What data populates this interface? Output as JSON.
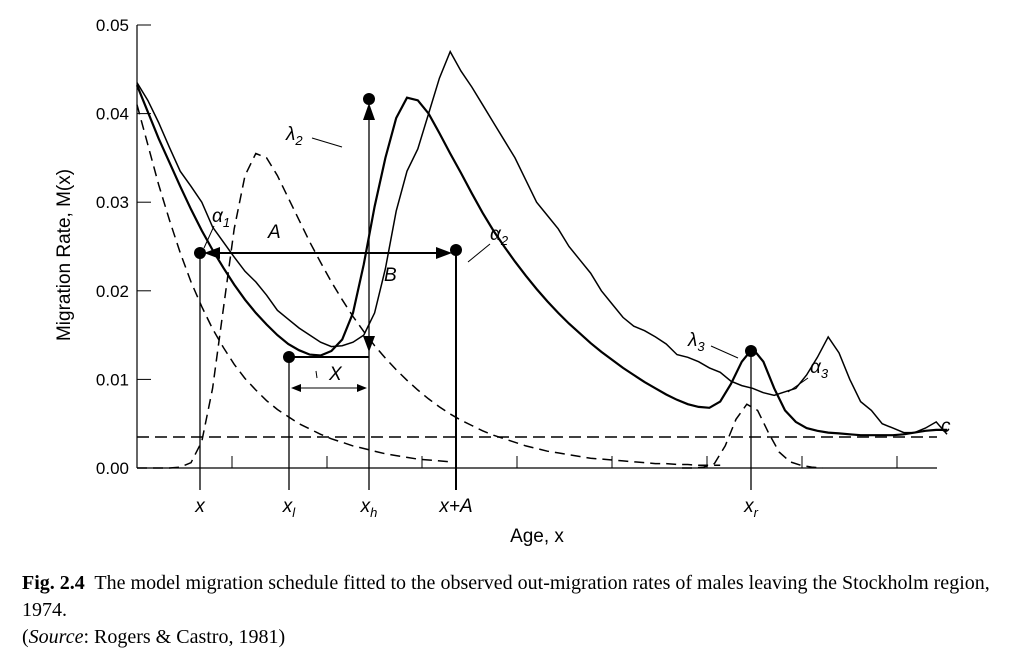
{
  "chart_data": {
    "type": "line",
    "ylabel": "Migration Rate, M(x)",
    "xlabel": "Age, x",
    "ylim": [
      0.0,
      0.05
    ],
    "yticks": [
      "0.00",
      "0.01",
      "0.02",
      "0.03",
      "0.04",
      "0.05"
    ],
    "xtick_labels": [
      {
        "key": "x",
        "text": "x"
      },
      {
        "key": "xl",
        "text": "x",
        "sub": "l"
      },
      {
        "key": "xh",
        "text": "x",
        "sub": "h"
      },
      {
        "key": "xA",
        "text": "x+A"
      },
      {
        "key": "xr",
        "text": "x",
        "sub": "r"
      }
    ],
    "grid": false,
    "series": [
      {
        "style": "solid-jagged",
        "values": [
          0.0435,
          0.0415,
          0.039,
          0.0362,
          0.0335,
          0.0318,
          0.03,
          0.0272,
          0.0255,
          0.0238,
          0.0222,
          0.021,
          0.0195,
          0.0178,
          0.0168,
          0.0158,
          0.015,
          0.0142,
          0.0137,
          0.0138,
          0.0142,
          0.015,
          0.0175,
          0.0225,
          0.029,
          0.0335,
          0.036,
          0.04,
          0.044,
          0.047,
          0.0448,
          0.043,
          0.041,
          0.039,
          0.037,
          0.035,
          0.0325,
          0.03,
          0.0285,
          0.027,
          0.025,
          0.0235,
          0.022,
          0.02,
          0.0185,
          0.017,
          0.016,
          0.0155,
          0.0148,
          0.014,
          0.0128,
          0.0125,
          0.012,
          0.0113,
          0.0108,
          0.0098,
          0.0093,
          0.009,
          0.0085,
          0.0082,
          0.0086,
          0.009,
          0.0105,
          0.0125,
          0.0148,
          0.013,
          0.01,
          0.0075,
          0.0065,
          0.005,
          0.0045,
          0.004,
          0.004,
          0.0045,
          0.0052,
          0.0038
        ]
      },
      {
        "style": "solid-smooth",
        "values": [
          0.0432,
          0.0402,
          0.0372,
          0.0345,
          0.0318,
          0.0292,
          0.0268,
          0.0246,
          0.0226,
          0.0207,
          0.019,
          0.0175,
          0.0162,
          0.015,
          0.014,
          0.0133,
          0.0128,
          0.0127,
          0.0132,
          0.0145,
          0.0175,
          0.023,
          0.0295,
          0.035,
          0.0395,
          0.0418,
          0.0415,
          0.04,
          0.0378,
          0.0355,
          0.0333,
          0.031,
          0.0288,
          0.0268,
          0.025,
          0.0233,
          0.0217,
          0.0202,
          0.0188,
          0.0175,
          0.0163,
          0.0152,
          0.0141,
          0.0131,
          0.0122,
          0.0113,
          0.0105,
          0.0097,
          0.009,
          0.0083,
          0.0077,
          0.0072,
          0.0069,
          0.0068,
          0.0075,
          0.0095,
          0.012,
          0.0135,
          0.012,
          0.009,
          0.0065,
          0.0052,
          0.0045,
          0.0042,
          0.004,
          0.0039,
          0.0038,
          0.0037,
          0.0037,
          0.0037,
          0.0037,
          0.0038,
          0.004,
          0.0042,
          0.0043,
          0.0043
        ]
      },
      {
        "style": "dashed-prelabor",
        "values": [
          0.041,
          0.0365,
          0.032,
          0.028,
          0.0243,
          0.021,
          0.0182,
          0.0157,
          0.0136,
          0.0117,
          0.0101,
          0.0088,
          0.0076,
          0.0066,
          0.0058,
          0.005,
          0.0044,
          0.0038,
          0.0033,
          0.0029,
          0.0025,
          0.0022,
          0.0019,
          0.0016,
          0.0014,
          0.0012,
          0.001,
          0.0009,
          0.0008,
          0.0007
        ]
      },
      {
        "style": "dashed-labor",
        "values": [
          0.0,
          0.0,
          0.0,
          0.0,
          0.0001,
          0.0006,
          0.003,
          0.009,
          0.018,
          0.027,
          0.033,
          0.0355,
          0.035,
          0.033,
          0.0305,
          0.028,
          0.0255,
          0.0232,
          0.021,
          0.019,
          0.0171,
          0.0154,
          0.0138,
          0.0124,
          0.0111,
          0.0099,
          0.0088,
          0.0078,
          0.0069,
          0.0061,
          0.0054,
          0.0048,
          0.0042,
          0.0037,
          0.0033,
          0.0029,
          0.0025,
          0.0022,
          0.0019,
          0.0017,
          0.0015,
          0.0013,
          0.0011,
          0.001,
          0.0009,
          0.0008,
          0.0007,
          0.0006,
          0.0005,
          0.0005,
          0.0004,
          0.0004,
          0.0003,
          0.0003,
          0.0003
        ]
      },
      {
        "style": "dashed-retirement",
        "values": [
          0.0,
          0.0,
          0.0001,
          0.0005,
          0.0025,
          0.0055,
          0.0072,
          0.0065,
          0.004,
          0.0018,
          0.0007,
          0.0003,
          0.0001,
          0.0
        ]
      },
      {
        "style": "dashed-constant",
        "values": [
          0.0035
        ]
      }
    ],
    "annotations": {
      "a1": {
        "text": "α",
        "sub": "1"
      },
      "A": {
        "text": "A"
      },
      "lambda2": {
        "text": "λ",
        "sub": "2"
      },
      "B": {
        "text": "B"
      },
      "a2": {
        "text": "α",
        "sub": "2"
      },
      "X": {
        "text": "X"
      },
      "lambda3": {
        "text": "λ",
        "sub": "3"
      },
      "a3": {
        "text": "α",
        "sub": "3"
      },
      "c": {
        "text": "c"
      }
    }
  },
  "caption": {
    "fig_label": "Fig. 2.4",
    "text": "The model migration schedule fitted to the observed out-migration rates of males leaving the Stockholm region, 1974.",
    "source_prefix": "(",
    "source_label": "Source",
    "source_text": ": Rogers & Castro, 1981)"
  }
}
